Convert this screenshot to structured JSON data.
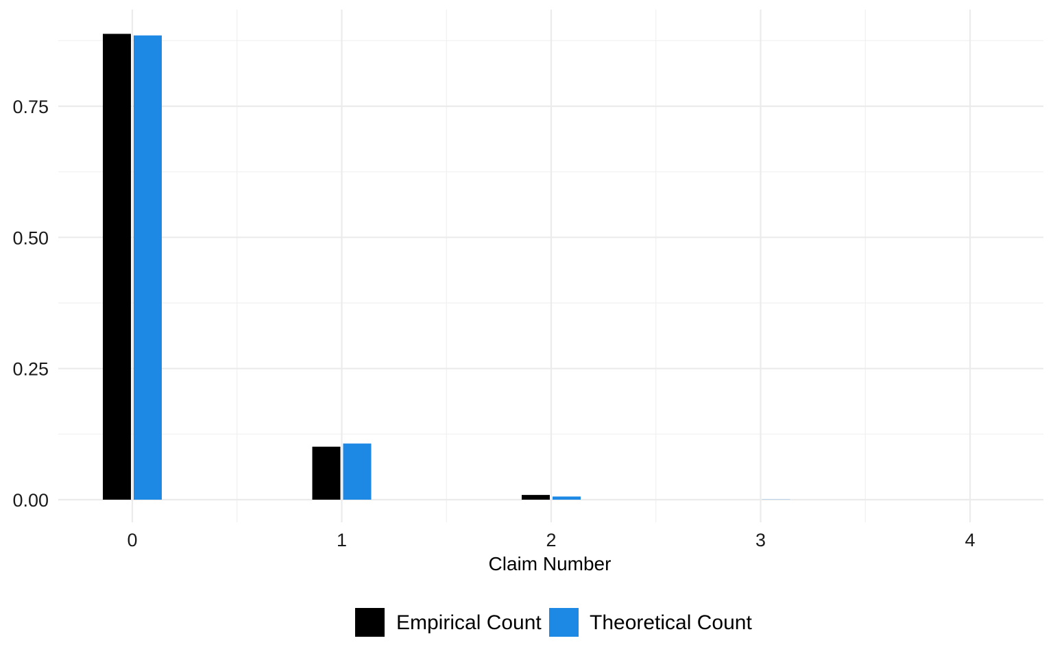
{
  "chart_data": {
    "type": "bar",
    "title": "",
    "xlabel": "Claim Number",
    "ylabel": "",
    "categories": [
      "0",
      "1",
      "2",
      "3",
      "4"
    ],
    "series": [
      {
        "name": "Empirical Count",
        "values": [
          0.888,
          0.101,
          0.009,
          0.0,
          0.0
        ]
      },
      {
        "name": "Theoretical Count",
        "values": [
          0.885,
          0.107,
          0.006,
          0.0003,
          0.0
        ]
      }
    ],
    "yticks": [
      "0.00",
      "0.25",
      "0.50",
      "0.75"
    ],
    "ytick_values": [
      0,
      0.25,
      0.5,
      0.75
    ],
    "ylim": [
      -0.0,
      0.885
    ],
    "grid": true,
    "legend_position": "bottom",
    "colors": {
      "Empirical Count": "#000000",
      "Theoretical Count": "#1e88e5"
    }
  }
}
